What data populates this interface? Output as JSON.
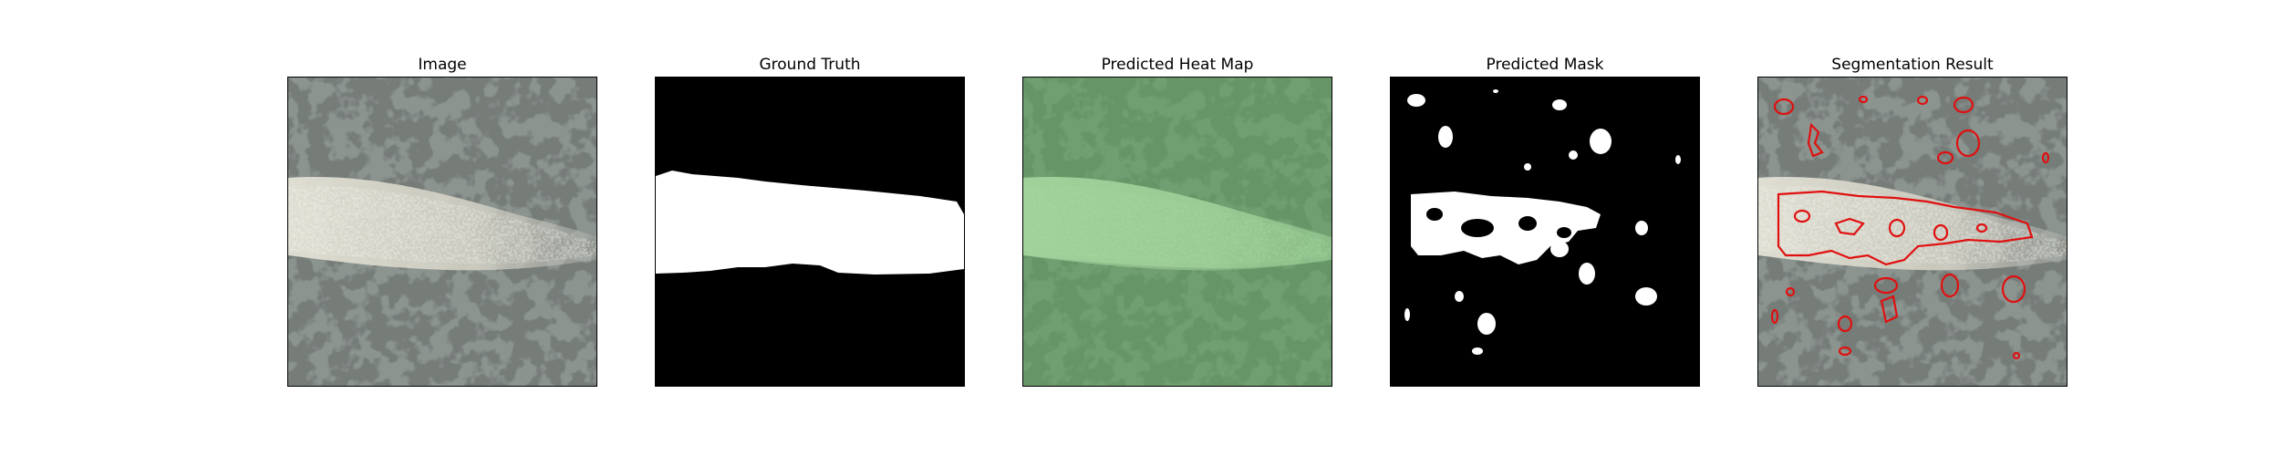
{
  "panels": [
    {
      "title": "Image"
    },
    {
      "title": "Ground Truth"
    },
    {
      "title": "Predicted Heat Map"
    },
    {
      "title": "Predicted Mask"
    },
    {
      "title": "Segmentation Result"
    }
  ],
  "colors": {
    "background": "#ffffff",
    "granite_base": "#8c9490",
    "granite_spots": "#2e3230",
    "band": "#d8d6cc",
    "heat_overlay": "#5aaa5a",
    "mask_fg": "#ffffff",
    "mask_bg": "#000000",
    "contour": "#e01010"
  }
}
